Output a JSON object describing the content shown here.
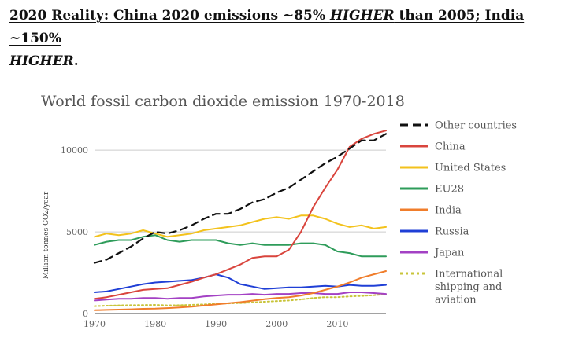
{
  "headline": {
    "part1": "2020 Reality: China 2020 emissions ~85% ",
    "higher1": "HIGHER",
    "part2": " than 2005; India ~150% ",
    "higher2": "HIGHER",
    "end": "."
  },
  "chart_data": {
    "type": "line",
    "title": "World fossil carbon dioxide emission 1970-2018",
    "xlabel": "",
    "ylabel": "Million tonnes CO2/year",
    "xlim": [
      1970,
      2018
    ],
    "ylim": [
      0,
      11500
    ],
    "xticks": [
      "1970",
      "1980",
      "1990",
      "2000",
      "2010"
    ],
    "yticks": [
      "0",
      "5000",
      "10000"
    ],
    "grid": "horizontal",
    "legend_position": "right",
    "series": [
      {
        "name": "Other countries",
        "color": "#111111",
        "dash": "dashed",
        "x": [
          1970,
          1972,
          1974,
          1976,
          1978,
          1980,
          1982,
          1984,
          1986,
          1988,
          1990,
          1992,
          1994,
          1996,
          1998,
          2000,
          2002,
          2004,
          2006,
          2008,
          2010,
          2012,
          2014,
          2016,
          2018
        ],
        "y": [
          3100,
          3300,
          3700,
          4100,
          4600,
          5000,
          4900,
          5100,
          5400,
          5800,
          6100,
          6100,
          6400,
          6800,
          7000,
          7400,
          7700,
          8200,
          8700,
          9200,
          9600,
          10100,
          10600,
          10600,
          11000
        ]
      },
      {
        "name": "China",
        "color": "#d9453d",
        "dash": "solid",
        "x": [
          1970,
          1972,
          1974,
          1976,
          1978,
          1980,
          1982,
          1984,
          1986,
          1988,
          1990,
          1992,
          1994,
          1996,
          1998,
          2000,
          2002,
          2004,
          2006,
          2008,
          2010,
          2012,
          2014,
          2016,
          2018
        ],
        "y": [
          900,
          1000,
          1150,
          1300,
          1450,
          1500,
          1550,
          1750,
          1950,
          2200,
          2400,
          2700,
          3000,
          3400,
          3500,
          3500,
          3900,
          5000,
          6500,
          7700,
          8800,
          10200,
          10700,
          11000,
          11200
        ]
      },
      {
        "name": "United States",
        "color": "#f3c21c",
        "dash": "solid",
        "x": [
          1970,
          1972,
          1974,
          1976,
          1978,
          1980,
          1982,
          1984,
          1986,
          1988,
          1990,
          1992,
          1994,
          1996,
          1998,
          2000,
          2002,
          2004,
          2006,
          2008,
          2010,
          2012,
          2014,
          2016,
          2018
        ],
        "y": [
          4700,
          4900,
          4800,
          4900,
          5100,
          4900,
          4700,
          4800,
          4900,
          5100,
          5200,
          5300,
          5400,
          5600,
          5800,
          5900,
          5800,
          6000,
          6000,
          5800,
          5500,
          5300,
          5400,
          5200,
          5300
        ]
      },
      {
        "name": "EU28",
        "color": "#2e9c5a",
        "dash": "solid",
        "x": [
          1970,
          1972,
          1974,
          1976,
          1978,
          1980,
          1982,
          1984,
          1986,
          1988,
          1990,
          1992,
          1994,
          1996,
          1998,
          2000,
          2002,
          2004,
          2006,
          2008,
          2010,
          2012,
          2014,
          2016,
          2018
        ],
        "y": [
          4200,
          4400,
          4500,
          4500,
          4700,
          4800,
          4500,
          4400,
          4500,
          4500,
          4500,
          4300,
          4200,
          4300,
          4200,
          4200,
          4200,
          4300,
          4300,
          4200,
          3800,
          3700,
          3500,
          3500,
          3500
        ]
      },
      {
        "name": "India",
        "color": "#f07d2b",
        "dash": "solid",
        "x": [
          1970,
          1972,
          1974,
          1976,
          1978,
          1980,
          1982,
          1984,
          1986,
          1988,
          1990,
          1992,
          1994,
          1996,
          1998,
          2000,
          2002,
          2004,
          2006,
          2008,
          2010,
          2012,
          2014,
          2016,
          2018
        ],
        "y": [
          200,
          220,
          240,
          260,
          290,
          300,
          330,
          370,
          420,
          490,
          560,
          630,
          700,
          790,
          880,
          950,
          1000,
          1100,
          1250,
          1450,
          1650,
          1900,
          2200,
          2400,
          2600
        ]
      },
      {
        "name": "Russia",
        "color": "#1f3fd6",
        "dash": "solid",
        "x": [
          1970,
          1972,
          1974,
          1976,
          1978,
          1980,
          1982,
          1984,
          1986,
          1988,
          1990,
          1992,
          1994,
          1996,
          1998,
          2000,
          2002,
          2004,
          2006,
          2008,
          2010,
          2012,
          2014,
          2016,
          2018
        ],
        "y": [
          1300,
          1350,
          1500,
          1650,
          1800,
          1900,
          1950,
          2000,
          2050,
          2200,
          2400,
          2200,
          1800,
          1650,
          1500,
          1550,
          1600,
          1600,
          1650,
          1700,
          1650,
          1750,
          1700,
          1700,
          1750
        ]
      },
      {
        "name": "Japan",
        "color": "#a341c4",
        "dash": "solid",
        "x": [
          1970,
          1972,
          1974,
          1976,
          1978,
          1980,
          1982,
          1984,
          1986,
          1988,
          1990,
          1992,
          1994,
          1996,
          1998,
          2000,
          2002,
          2004,
          2006,
          2008,
          2010,
          2012,
          2014,
          2016,
          2018
        ],
        "y": [
          800,
          850,
          900,
          900,
          950,
          950,
          900,
          950,
          950,
          1050,
          1100,
          1150,
          1150,
          1200,
          1150,
          1200,
          1200,
          1250,
          1250,
          1200,
          1200,
          1300,
          1300,
          1250,
          1200
        ]
      },
      {
        "name": "International shipping and aviation",
        "color": "#c8c43a",
        "dash": "dotted",
        "x": [
          1970,
          1972,
          1974,
          1976,
          1978,
          1980,
          1982,
          1984,
          1986,
          1988,
          1990,
          1992,
          1994,
          1996,
          1998,
          2000,
          2002,
          2004,
          2006,
          2008,
          2010,
          2012,
          2014,
          2016,
          2018
        ],
        "y": [
          450,
          480,
          500,
          510,
          520,
          530,
          500,
          510,
          530,
          560,
          600,
          620,
          640,
          680,
          720,
          760,
          800,
          860,
          950,
          1000,
          1000,
          1050,
          1080,
          1120,
          1180
        ]
      }
    ],
    "legend_lines": {
      "International shipping and aviation": [
        "International",
        "shipping and",
        "aviation"
      ]
    }
  }
}
